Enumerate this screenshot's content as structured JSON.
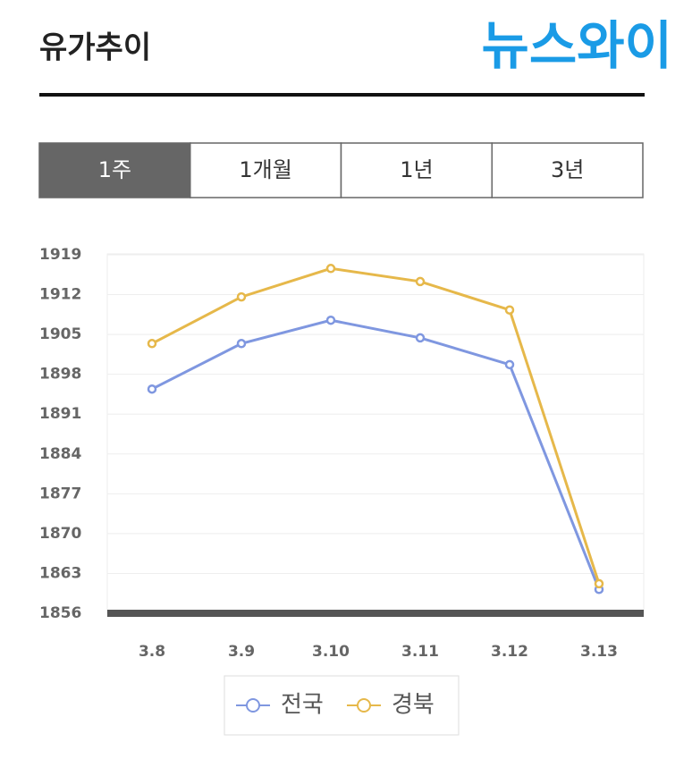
{
  "header": {
    "title": "유가추이",
    "logo": "뉴스와이"
  },
  "tabs": [
    "1주",
    "1개월",
    "1년",
    "3년"
  ],
  "active_tab": 0,
  "chart_data": {
    "type": "line",
    "categories": [
      "3.8",
      "3.9",
      "3.10",
      "3.11",
      "3.12",
      "3.13"
    ],
    "series": [
      {
        "name": "전국",
        "color": "#7f97e0",
        "values": [
          1895.4,
          1903.4,
          1907.5,
          1904.4,
          1899.7,
          1860.2
        ]
      },
      {
        "name": "경북",
        "color": "#e6b84a",
        "values": [
          1903.4,
          1911.6,
          1916.6,
          1914.3,
          1909.3,
          1861.2
        ]
      }
    ],
    "ylim": [
      1856,
      1919
    ],
    "yticks": [
      1856,
      1863,
      1870,
      1877,
      1884,
      1891,
      1898,
      1905,
      1912,
      1919
    ],
    "grid": true,
    "legend": "bottom"
  }
}
